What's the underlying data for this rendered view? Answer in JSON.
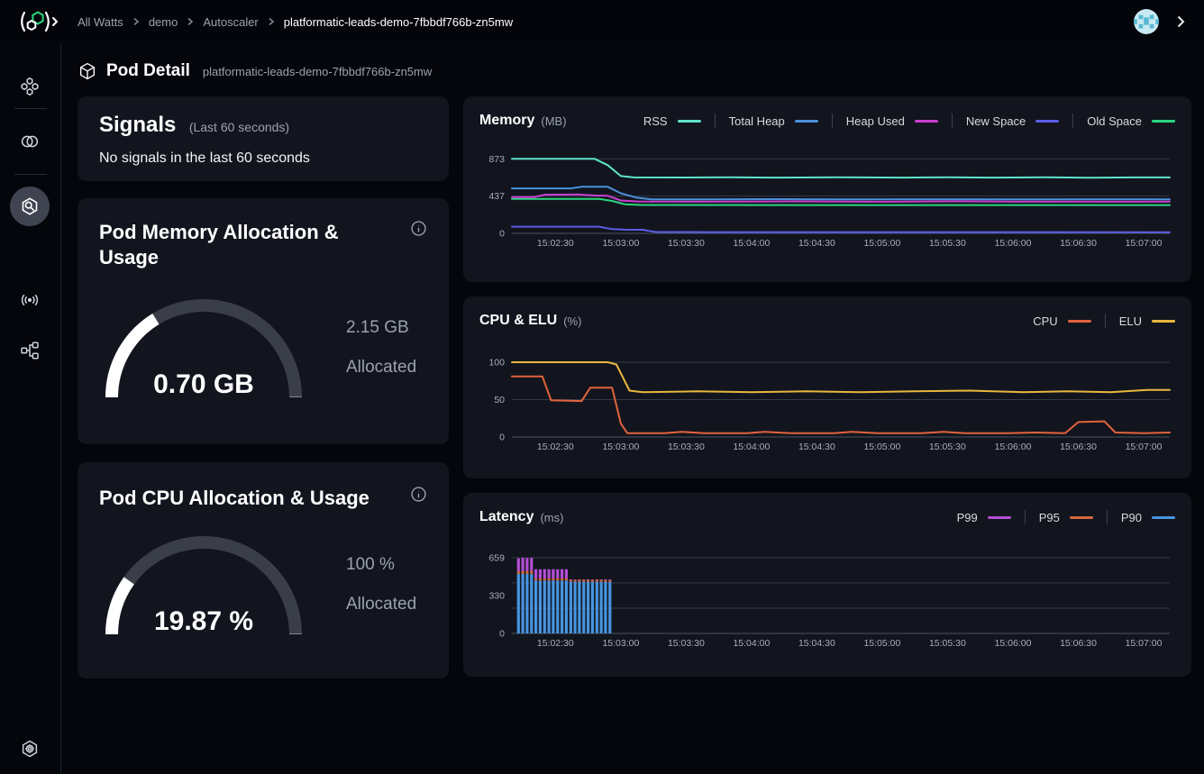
{
  "topbar": {
    "breadcrumb": [
      "All Watts",
      "demo",
      "Autoscaler",
      "platformatic-leads-demo-7fbbdf766b-zn5mw"
    ]
  },
  "header": {
    "title": "Pod Detail",
    "subtitle": "platformatic-leads-demo-7fbbdf766b-zn5mw"
  },
  "signals": {
    "title": "Signals",
    "period": "(Last 60 seconds)",
    "message": "No signals in the last 60 seconds"
  },
  "memory_gauge": {
    "title": "Pod Memory Allocation & Usage",
    "value": "0.70 GB",
    "percent": 32.6,
    "allocated_value": "2.15 GB",
    "allocated_label": "Allocated"
  },
  "cpu_gauge": {
    "title": "Pod CPU Allocation & Usage",
    "value": "19.87 %",
    "percent": 19.87,
    "allocated_value": "100 %",
    "allocated_label": "Allocated"
  },
  "colors": {
    "page_bg": "#04060b",
    "card_bg": "#12151e",
    "gauge_track": "#3a3e48",
    "gauge_fill": "#ffffff",
    "grid_line": "#353b47",
    "axis_line": "#4b5260",
    "brand_green": "#2bd680"
  },
  "icons": {
    "logo": "platformatic-logo",
    "sidebar": [
      "hexgrid-icon",
      "watts-icon",
      "pod-search-icon",
      "broadcast-icon",
      "topology-icon",
      "settings-gear-icon"
    ],
    "header": "cube-icon",
    "cards": "info-icon",
    "topbar_right": [
      "user-avatar",
      "chevron-right-icon"
    ]
  },
  "chart_data": [
    {
      "id": "memory",
      "type": "line",
      "title": "Memory",
      "unit": "(MB)",
      "ylim": [
        0,
        940
      ],
      "yticks": [
        {
          "v": 873,
          "label": "873"
        },
        {
          "v": 437,
          "label": "437"
        },
        {
          "v": 0,
          "label": "0"
        }
      ],
      "gridlines": [
        873,
        437,
        0
      ],
      "xlim": [
        0,
        302
      ],
      "xticks": [
        {
          "v": 20,
          "label": "15:02:30"
        },
        {
          "v": 50,
          "label": "15:03:00"
        },
        {
          "v": 80,
          "label": "15:03:30"
        },
        {
          "v": 110,
          "label": "15:04:00"
        },
        {
          "v": 140,
          "label": "15:04:30"
        },
        {
          "v": 170,
          "label": "15:05:00"
        },
        {
          "v": 200,
          "label": "15:05:30"
        },
        {
          "v": 230,
          "label": "15:06:00"
        },
        {
          "v": 260,
          "label": "15:06:30"
        },
        {
          "v": 290,
          "label": "15:07:00"
        }
      ],
      "legend": [
        {
          "label": "RSS",
          "color": "#5fe3c9"
        },
        {
          "label": "Total Heap",
          "color": "#4a90dc"
        },
        {
          "label": "Heap Used",
          "color": "#c93ed3"
        },
        {
          "label": "New Space",
          "color": "#5d5ce6"
        },
        {
          "label": "Old Space",
          "color": "#2bd680"
        }
      ],
      "series": [
        {
          "name": "New Space",
          "color": "#5d5ce6",
          "points": [
            [
              0,
              78
            ],
            [
              40,
              78
            ],
            [
              46,
              50
            ],
            [
              52,
              43
            ],
            [
              60,
              42
            ],
            [
              66,
              16
            ],
            [
              90,
              15
            ],
            [
              302,
              14
            ]
          ]
        },
        {
          "name": "Old Space",
          "color": "#2bd680",
          "points": [
            [
              0,
              404
            ],
            [
              40,
              404
            ],
            [
              46,
              380
            ],
            [
              52,
              340
            ],
            [
              60,
              333
            ],
            [
              150,
              332
            ],
            [
              302,
              332
            ]
          ]
        },
        {
          "name": "Heap Used",
          "color": "#c93ed3",
          "points": [
            [
              0,
              424
            ],
            [
              10,
              425
            ],
            [
              15,
              453
            ],
            [
              30,
              456
            ],
            [
              38,
              444
            ],
            [
              44,
              440
            ],
            [
              50,
              385
            ],
            [
              58,
              374
            ],
            [
              90,
              372
            ],
            [
              130,
              375
            ],
            [
              170,
              371
            ],
            [
              205,
              376
            ],
            [
              230,
              372
            ],
            [
              270,
              373
            ],
            [
              302,
              372
            ]
          ]
        },
        {
          "name": "Total Heap",
          "color": "#4a90dc",
          "points": [
            [
              0,
              527
            ],
            [
              27,
              527
            ],
            [
              32,
              547
            ],
            [
              44,
              546
            ],
            [
              50,
              470
            ],
            [
              57,
              420
            ],
            [
              64,
              399
            ],
            [
              90,
              398
            ],
            [
              120,
              401
            ],
            [
              160,
              398
            ],
            [
              200,
              400
            ],
            [
              240,
              398
            ],
            [
              270,
              400
            ],
            [
              302,
              399
            ]
          ]
        },
        {
          "name": "RSS",
          "color": "#5fe3c9",
          "points": [
            [
              0,
              873
            ],
            [
              38,
              873
            ],
            [
              44,
              800
            ],
            [
              50,
              672
            ],
            [
              56,
              656
            ],
            [
              80,
              655
            ],
            [
              100,
              658
            ],
            [
              120,
              654
            ],
            [
              150,
              657
            ],
            [
              180,
              654
            ],
            [
              200,
              657
            ],
            [
              220,
              654
            ],
            [
              245,
              657
            ],
            [
              265,
              653
            ],
            [
              285,
              656
            ],
            [
              302,
              656
            ]
          ]
        }
      ]
    },
    {
      "id": "cpu",
      "type": "line",
      "title": "CPU & ELU",
      "unit": "(%)",
      "ylim": [
        0,
        112
      ],
      "yticks": [
        {
          "v": 100,
          "label": "100"
        },
        {
          "v": 50,
          "label": "50"
        },
        {
          "v": 0,
          "label": "0"
        }
      ],
      "gridlines": [
        100,
        50,
        0
      ],
      "xlim": [
        0,
        302
      ],
      "xticks": [
        {
          "v": 20,
          "label": "15:02:30"
        },
        {
          "v": 50,
          "label": "15:03:00"
        },
        {
          "v": 80,
          "label": "15:03:30"
        },
        {
          "v": 110,
          "label": "15:04:00"
        },
        {
          "v": 140,
          "label": "15:04:30"
        },
        {
          "v": 170,
          "label": "15:05:00"
        },
        {
          "v": 200,
          "label": "15:05:30"
        },
        {
          "v": 230,
          "label": "15:06:00"
        },
        {
          "v": 260,
          "label": "15:06:30"
        },
        {
          "v": 290,
          "label": "15:07:00"
        }
      ],
      "legend": [
        {
          "label": "CPU",
          "color": "#e2633c"
        },
        {
          "label": "ELU",
          "color": "#e8b73e"
        }
      ],
      "series": [
        {
          "name": "CPU",
          "color": "#e2633c",
          "points": [
            [
              0,
              81
            ],
            [
              14,
              81
            ],
            [
              18,
              49
            ],
            [
              32,
              48
            ],
            [
              36,
              66
            ],
            [
              46,
              66
            ],
            [
              50,
              18
            ],
            [
              53,
              5
            ],
            [
              70,
              5
            ],
            [
              78,
              7
            ],
            [
              88,
              5
            ],
            [
              108,
              5
            ],
            [
              116,
              7
            ],
            [
              128,
              5
            ],
            [
              148,
              5
            ],
            [
              156,
              7
            ],
            [
              168,
              5
            ],
            [
              188,
              5
            ],
            [
              198,
              7
            ],
            [
              208,
              5
            ],
            [
              228,
              5
            ],
            [
              240,
              6
            ],
            [
              254,
              5
            ],
            [
              260,
              20
            ],
            [
              272,
              21
            ],
            [
              277,
              6
            ],
            [
              290,
              5
            ],
            [
              302,
              6
            ]
          ]
        },
        {
          "name": "ELU",
          "color": "#e8b73e",
          "points": [
            [
              0,
              100
            ],
            [
              44,
              100
            ],
            [
              48,
              97
            ],
            [
              54,
              62
            ],
            [
              60,
              60
            ],
            [
              85,
              61
            ],
            [
              110,
              60
            ],
            [
              135,
              61
            ],
            [
              160,
              60
            ],
            [
              185,
              61
            ],
            [
              210,
              62
            ],
            [
              235,
              60
            ],
            [
              255,
              61
            ],
            [
              275,
              60
            ],
            [
              292,
              63
            ],
            [
              302,
              63
            ]
          ]
        }
      ]
    },
    {
      "id": "latency",
      "type": "stacked_bar",
      "title": "Latency",
      "unit": "(ms)",
      "ylim": [
        0,
        730
      ],
      "yticks": [
        {
          "v": 659,
          "label": "659"
        },
        {
          "v": 330,
          "label": "330"
        },
        {
          "v": 0,
          "label": "0"
        }
      ],
      "gridlines": [
        659,
        440,
        220,
        0
      ],
      "xlim": [
        0,
        302
      ],
      "xticks": [
        {
          "v": 20,
          "label": "15:02:30"
        },
        {
          "v": 50,
          "label": "15:03:00"
        },
        {
          "v": 80,
          "label": "15:03:30"
        },
        {
          "v": 110,
          "label": "15:04:00"
        },
        {
          "v": 140,
          "label": "15:04:30"
        },
        {
          "v": 170,
          "label": "15:05:00"
        },
        {
          "v": 200,
          "label": "15:05:30"
        },
        {
          "v": 230,
          "label": "15:06:00"
        },
        {
          "v": 260,
          "label": "15:06:30"
        },
        {
          "v": 290,
          "label": "15:07:00"
        }
      ],
      "legend": [
        {
          "label": "P99",
          "color": "#b44fd6"
        },
        {
          "label": "P95",
          "color": "#d2693f"
        },
        {
          "label": "P90",
          "color": "#4794e0"
        }
      ],
      "segment_colors": [
        "#4794e0",
        "#d2693f",
        "#b44fd6"
      ],
      "segment_names": [
        "P90",
        "P95",
        "P99"
      ],
      "bars": [
        [
          3,
          520,
          545,
          655
        ],
        [
          5,
          518,
          543,
          659
        ],
        [
          7,
          520,
          545,
          657
        ],
        [
          9,
          519,
          544,
          659
        ],
        [
          11,
          462,
          480,
          560
        ],
        [
          13,
          460,
          482,
          558
        ],
        [
          15,
          462,
          480,
          560
        ],
        [
          17,
          460,
          481,
          559
        ],
        [
          19,
          462,
          480,
          560
        ],
        [
          21,
          461,
          482,
          558
        ],
        [
          23,
          460,
          480,
          560
        ],
        [
          25,
          462,
          481,
          559
        ],
        [
          27,
          452,
          468,
          472
        ],
        [
          29,
          450,
          466,
          470
        ],
        [
          31,
          452,
          468,
          471
        ],
        [
          33,
          450,
          467,
          470
        ],
        [
          35,
          451,
          468,
          472
        ],
        [
          37,
          450,
          466,
          470
        ],
        [
          39,
          452,
          468,
          471
        ],
        [
          41,
          450,
          467,
          470
        ],
        [
          43,
          451,
          468,
          472
        ],
        [
          45,
          450,
          466,
          470
        ]
      ]
    }
  ]
}
